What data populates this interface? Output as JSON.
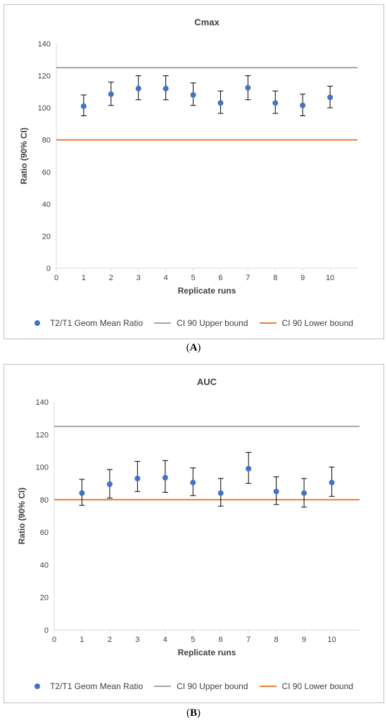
{
  "colors": {
    "point": "#4472c4",
    "upper": "#a5a5a5",
    "lower": "#ed7d31",
    "axis": "#d9d9d9"
  },
  "chart_data": [
    {
      "type": "scatter",
      "caption": "A",
      "title": "Cmax",
      "xlabel": "Replicate runs",
      "ylabel": "Ratio (90% CI)",
      "xlim": [
        0,
        11
      ],
      "ylim": [
        0,
        140
      ],
      "x_ticks": [
        0,
        1,
        2,
        3,
        4,
        5,
        6,
        7,
        8,
        9,
        10
      ],
      "y_ticks": [
        0,
        20,
        40,
        60,
        80,
        100,
        120,
        140
      ],
      "grid": false,
      "legend_position": "bottom",
      "series": [
        {
          "name": "T2/T1 Geom Mean Ratio",
          "kind": "points_with_error_bars",
          "x": [
            1,
            2,
            3,
            4,
            5,
            6,
            7,
            8,
            9,
            10
          ],
          "y": [
            101,
            108.5,
            112,
            112,
            108,
            103,
            112.5,
            103,
            101.5,
            106.5
          ],
          "lower": [
            95,
            101.5,
            105,
            105,
            101.5,
            96.5,
            105,
            96.5,
            95,
            100
          ],
          "upper": [
            108,
            116,
            120,
            120,
            115.5,
            110.5,
            120,
            110.5,
            108.5,
            113.5
          ]
        },
        {
          "name": "CI 90 Upper bound",
          "kind": "horizontal_line",
          "y": 125
        },
        {
          "name": "CI 90 Lower bound",
          "kind": "horizontal_line",
          "y": 80
        }
      ]
    },
    {
      "type": "scatter",
      "caption": "B",
      "title": "AUC",
      "xlabel": "Replicate runs",
      "ylabel": "Ratio (90% CI)",
      "xlim": [
        0,
        11
      ],
      "ylim": [
        0,
        140
      ],
      "x_ticks": [
        0,
        1,
        2,
        3,
        4,
        5,
        6,
        7,
        8,
        9,
        10
      ],
      "y_ticks": [
        0,
        20,
        40,
        60,
        80,
        100,
        120,
        140
      ],
      "grid": false,
      "legend_position": "bottom",
      "series": [
        {
          "name": "T2/T1 Geom Mean Ratio",
          "kind": "points_with_error_bars",
          "x": [
            1,
            2,
            3,
            4,
            5,
            6,
            7,
            8,
            9,
            10
          ],
          "y": [
            84,
            89.5,
            93,
            93.5,
            90.5,
            84,
            99,
            85,
            84,
            90.5
          ],
          "lower": [
            76.5,
            81,
            85,
            84.5,
            82.5,
            76,
            90,
            77,
            75.5,
            82
          ],
          "upper": [
            92.5,
            98.5,
            103.5,
            104,
            99.5,
            93,
            109,
            94,
            93,
            100
          ]
        },
        {
          "name": "CI 90 Upper bound",
          "kind": "horizontal_line",
          "y": 125
        },
        {
          "name": "CI 90 Lower bound",
          "kind": "horizontal_line",
          "y": 80
        }
      ]
    }
  ]
}
